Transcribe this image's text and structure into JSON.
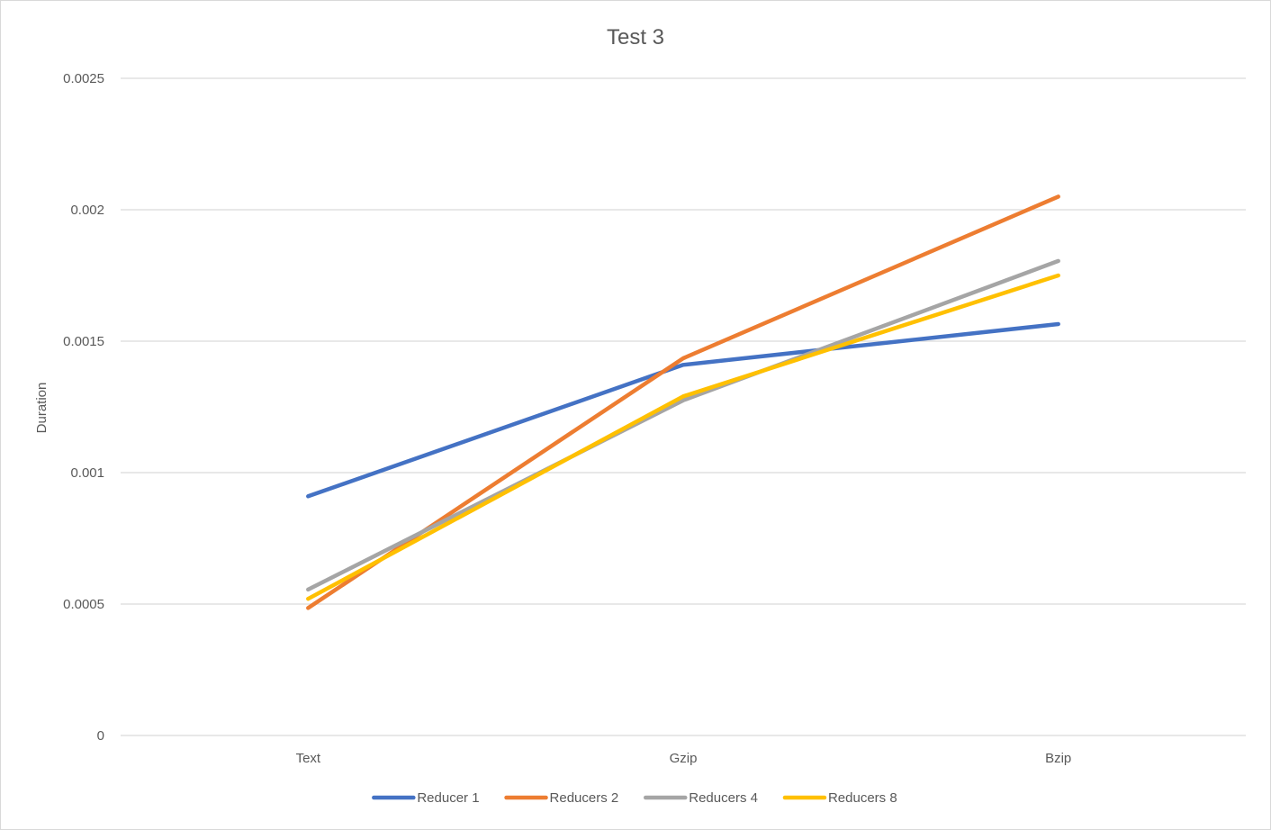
{
  "chart_data": {
    "type": "line",
    "title": "Test 3",
    "xlabel": "",
    "ylabel": "Duration",
    "categories": [
      "Text",
      "Gzip",
      "Bzip"
    ],
    "ylim": [
      0,
      0.0025
    ],
    "yticks": [
      0,
      0.0005,
      0.001,
      0.0015,
      0.002,
      0.0025
    ],
    "ytick_labels": [
      "0",
      "0.0005",
      "0.001",
      "0.0015",
      "0.002",
      "0.0025"
    ],
    "grid": true,
    "legend_position": "bottom",
    "series": [
      {
        "name": "Reducer 1",
        "color": "#4472C4",
        "values": [
          0.00091,
          0.00141,
          0.001565
        ]
      },
      {
        "name": "Reducers 2",
        "color": "#ED7D31",
        "values": [
          0.000485,
          0.001435,
          0.00205
        ]
      },
      {
        "name": "Reducers 4",
        "color": "#A5A5A5",
        "values": [
          0.000555,
          0.001275,
          0.001805
        ]
      },
      {
        "name": "Reducers 8",
        "color": "#FFC000",
        "values": [
          0.00052,
          0.00129,
          0.00175
        ]
      }
    ]
  }
}
